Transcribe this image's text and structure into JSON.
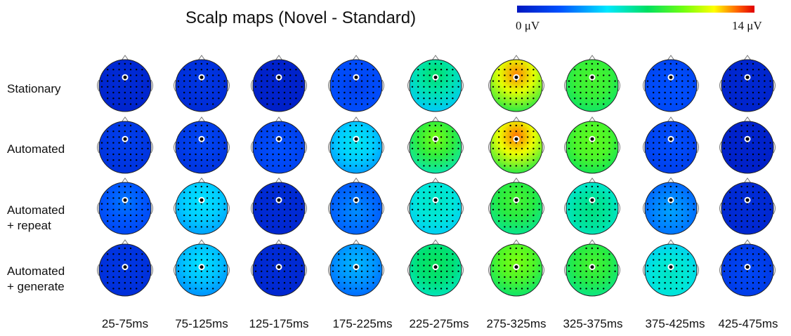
{
  "title": "Scalp maps (Novel - Standard)",
  "colorbar": {
    "min_label": "0 μV",
    "max_label": "14 μV",
    "colors": [
      "#0018c0",
      "#0050ff",
      "#00e8ff",
      "#00e060",
      "#70ff10",
      "#ffff00",
      "#ff6000",
      "#e00000"
    ]
  },
  "rows": [
    {
      "label": "Stationary"
    },
    {
      "label": "Automated"
    },
    {
      "label": "Automated\n+ repeat"
    },
    {
      "label": "Automated\n+ generate"
    }
  ],
  "columns": [
    {
      "label": "25-75ms"
    },
    {
      "label": "75-125ms"
    },
    {
      "label": "125-175ms"
    },
    {
      "label": "175-225ms"
    },
    {
      "label": "225-275ms"
    },
    {
      "label": "275-325ms"
    },
    {
      "label": "325-375ms"
    },
    {
      "label": "375-425ms"
    },
    {
      "label": "425-475ms"
    }
  ],
  "maps": [
    [
      {
        "base": 0.03,
        "peak": 0.05,
        "py": 0.2
      },
      {
        "base": 0.05,
        "peak": 0.08,
        "py": 0.2
      },
      {
        "base": 0.02,
        "peak": 0.03,
        "py": 0.2
      },
      {
        "base": 0.16,
        "peak": 0.1,
        "py": 0.6
      },
      {
        "base": 0.3,
        "peak": 0.42,
        "py": 0.0
      },
      {
        "base": 0.55,
        "peak": 0.82,
        "py": 0.0
      },
      {
        "base": 0.48,
        "peak": 0.52,
        "py": 0.2
      },
      {
        "base": 0.12,
        "peak": 0.14,
        "py": 0.6
      },
      {
        "base": 0.03,
        "peak": 0.04,
        "py": 0.2
      }
    ],
    [
      {
        "base": 0.07,
        "peak": 0.1,
        "py": 0.2
      },
      {
        "base": 0.07,
        "peak": 0.12,
        "py": 0.2
      },
      {
        "base": 0.1,
        "peak": 0.14,
        "py": 0.6
      },
      {
        "base": 0.22,
        "peak": 0.3,
        "py": 0.3
      },
      {
        "base": 0.4,
        "peak": 0.58,
        "py": 0.1
      },
      {
        "base": 0.55,
        "peak": 0.84,
        "py": 0.0
      },
      {
        "base": 0.5,
        "peak": 0.55,
        "py": 0.2
      },
      {
        "base": 0.1,
        "peak": 0.14,
        "py": 0.3
      },
      {
        "base": 0.02,
        "peak": 0.03,
        "py": 0.2
      }
    ],
    [
      {
        "base": 0.12,
        "peak": 0.18,
        "py": 0.2
      },
      {
        "base": 0.24,
        "peak": 0.28,
        "py": 0.2
      },
      {
        "base": 0.04,
        "peak": 0.05,
        "py": 0.2
      },
      {
        "base": 0.14,
        "peak": 0.2,
        "py": 0.6
      },
      {
        "base": 0.3,
        "peak": 0.34,
        "py": 0.2
      },
      {
        "base": 0.44,
        "peak": 0.52,
        "py": 0.1
      },
      {
        "base": 0.34,
        "peak": 0.4,
        "py": 0.6
      },
      {
        "base": 0.16,
        "peak": 0.22,
        "py": 0.6
      },
      {
        "base": 0.04,
        "peak": 0.05,
        "py": 0.2
      }
    ],
    [
      {
        "base": 0.06,
        "peak": 0.08,
        "py": 0.2
      },
      {
        "base": 0.22,
        "peak": 0.28,
        "py": 0.2
      },
      {
        "base": 0.04,
        "peak": 0.05,
        "py": 0.2
      },
      {
        "base": 0.18,
        "peak": 0.24,
        "py": 0.2
      },
      {
        "base": 0.38,
        "peak": 0.44,
        "py": 0.2
      },
      {
        "base": 0.48,
        "peak": 0.58,
        "py": 0.1
      },
      {
        "base": 0.44,
        "peak": 0.52,
        "py": 0.2
      },
      {
        "base": 0.3,
        "peak": 0.34,
        "py": 0.7
      },
      {
        "base": 0.08,
        "peak": 0.12,
        "py": 0.6
      }
    ]
  ]
}
